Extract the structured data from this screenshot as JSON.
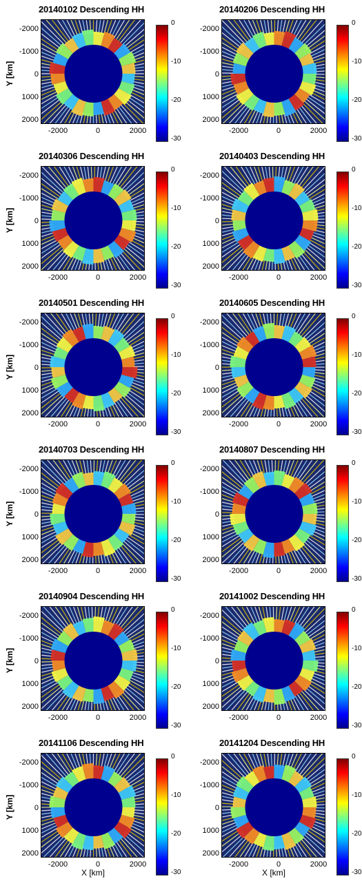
{
  "chart_data": {
    "type": "heatmap",
    "shared": {
      "ylabel": "Y [km]",
      "xlabel": "X [km]",
      "xticks": [
        "-2000",
        "0",
        "2000"
      ],
      "yticks": [
        "-2000",
        "-1000",
        "0",
        "1000",
        "2000"
      ],
      "xlim": [
        -2500,
        2500
      ],
      "ylim": [
        -2500,
        2500
      ],
      "colorbar": {
        "ticks": [
          "0",
          "-10",
          "-20",
          "-30"
        ],
        "range": [
          -30,
          0
        ],
        "colormap": "jet"
      }
    },
    "panels": [
      {
        "title": "20140102 Descending HH"
      },
      {
        "title": "20140206 Descending HH"
      },
      {
        "title": "20140306 Descending HH"
      },
      {
        "title": "20140403 Descending HH"
      },
      {
        "title": "20140501 Descending HH"
      },
      {
        "title": "20140605 Descending HH"
      },
      {
        "title": "20140703 Descending HH"
      },
      {
        "title": "20140807 Descending HH"
      },
      {
        "title": "20140904 Descending HH"
      },
      {
        "title": "20141002 Descending HH"
      },
      {
        "title": "20141106 Descending HH"
      },
      {
        "title": "20141204 Descending HH"
      }
    ]
  }
}
